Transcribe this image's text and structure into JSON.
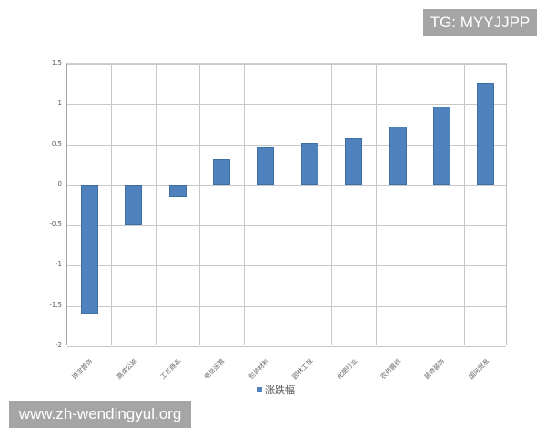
{
  "chart_data": {
    "type": "bar",
    "title": "",
    "xlabel": "",
    "ylabel": "",
    "categories": [
      "珠宝首饰",
      "高速公路",
      "工艺商品",
      "电信运营",
      "包装材料",
      "园林工程",
      "化肥行业",
      "农药兽药",
      "装修装饰",
      "国际贸易"
    ],
    "series": [
      {
        "name": "涨跌幅",
        "color": "#4f81bd",
        "values": [
          -1.6,
          -0.5,
          -0.15,
          0.31,
          0.46,
          0.52,
          0.57,
          0.72,
          0.97,
          1.26
        ]
      }
    ],
    "ylim": [
      -2,
      1.5
    ],
    "yticks": [
      "1.5",
      "1",
      "0.5",
      "0",
      "-0.5",
      "-1",
      "-1.5",
      "-2"
    ],
    "grid": true,
    "legend_position": "bottom"
  },
  "legend": {
    "label": "涨跌幅"
  },
  "watermarks": {
    "top_right": "TG: MYYJJPP",
    "bottom_left": "www.zh-wendingyul.org"
  }
}
